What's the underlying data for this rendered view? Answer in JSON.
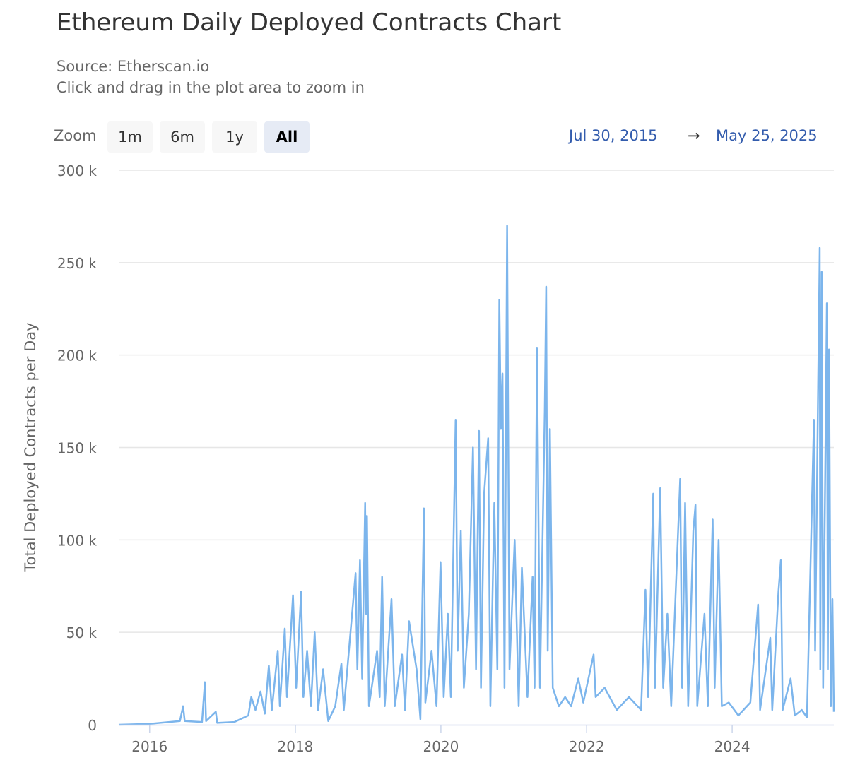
{
  "title": "Ethereum Daily Deployed Contracts Chart",
  "source": "Source: Etherscan.io",
  "hint": "Click and drag in the plot area to zoom in",
  "zoom": {
    "label": "Zoom",
    "buttons": [
      "1m",
      "6m",
      "1y",
      "All"
    ],
    "active": "All"
  },
  "range": {
    "from": "Jul 30, 2015",
    "arrow": "→",
    "to": "May 25, 2025"
  },
  "colors": {
    "line": "#7cb5ec",
    "grid": "#e6e6e6",
    "axis": "#ccd6eb",
    "range_text": "#335cad"
  },
  "chart_data": {
    "type": "line",
    "title": "Ethereum Daily Deployed Contracts Chart",
    "ylabel": "Total Deployed Contracts per Day",
    "xlabel": "",
    "xlim": [
      "2015-07-30",
      "2025-05-25"
    ],
    "ylim": [
      0,
      300000
    ],
    "grid": true,
    "x_ticks": [
      "2016",
      "2018",
      "2020",
      "2022",
      "2024"
    ],
    "y_ticks": [
      {
        "v": 0,
        "label": "0"
      },
      {
        "v": 50000,
        "label": "50 k"
      },
      {
        "v": 100000,
        "label": "100 k"
      },
      {
        "v": 150000,
        "label": "150 k"
      },
      {
        "v": 200000,
        "label": "200 k"
      },
      {
        "v": 250000,
        "label": "250 k"
      },
      {
        "v": 300000,
        "label": "300 k"
      }
    ],
    "points": [
      [
        "2015-07-30",
        0
      ],
      [
        "2016-01-01",
        500
      ],
      [
        "2016-06-01",
        2000
      ],
      [
        "2016-06-17",
        10000
      ],
      [
        "2016-06-25",
        2000
      ],
      [
        "2016-09-20",
        1500
      ],
      [
        "2016-10-04",
        23000
      ],
      [
        "2016-10-10",
        2000
      ],
      [
        "2016-11-28",
        7000
      ],
      [
        "2016-12-05",
        1000
      ],
      [
        "2017-03-01",
        1500
      ],
      [
        "2017-05-10",
        5000
      ],
      [
        "2017-05-25",
        15000
      ],
      [
        "2017-06-15",
        8000
      ],
      [
        "2017-07-10",
        18000
      ],
      [
        "2017-08-01",
        6000
      ],
      [
        "2017-08-21",
        32000
      ],
      [
        "2017-09-05",
        8000
      ],
      [
        "2017-10-05",
        40000
      ],
      [
        "2017-10-15",
        10000
      ],
      [
        "2017-11-09",
        52000
      ],
      [
        "2017-11-20",
        15000
      ],
      [
        "2017-12-20",
        70000
      ],
      [
        "2018-01-05",
        20000
      ],
      [
        "2018-01-30",
        72000
      ],
      [
        "2018-02-10",
        15000
      ],
      [
        "2018-03-01",
        40000
      ],
      [
        "2018-03-20",
        10000
      ],
      [
        "2018-04-08",
        50000
      ],
      [
        "2018-04-25",
        8000
      ],
      [
        "2018-05-20",
        30000
      ],
      [
        "2018-06-15",
        2000
      ],
      [
        "2018-07-20",
        10000
      ],
      [
        "2018-08-20",
        33000
      ],
      [
        "2018-09-01",
        8000
      ],
      [
        "2018-10-30",
        82000
      ],
      [
        "2018-11-08",
        30000
      ],
      [
        "2018-11-21",
        89000
      ],
      [
        "2018-12-02",
        25000
      ],
      [
        "2018-12-17",
        120000
      ],
      [
        "2018-12-22",
        60000
      ],
      [
        "2018-12-26",
        113000
      ],
      [
        "2019-01-05",
        10000
      ],
      [
        "2019-02-15",
        40000
      ],
      [
        "2019-02-28",
        15000
      ],
      [
        "2019-03-12",
        80000
      ],
      [
        "2019-03-25",
        10000
      ],
      [
        "2019-04-28",
        68000
      ],
      [
        "2019-05-15",
        10000
      ],
      [
        "2019-06-20",
        38000
      ],
      [
        "2019-07-05",
        8000
      ],
      [
        "2019-07-25",
        56000
      ],
      [
        "2019-09-01",
        30000
      ],
      [
        "2019-09-20",
        3000
      ],
      [
        "2019-10-08",
        117000
      ],
      [
        "2019-10-15",
        12000
      ],
      [
        "2019-11-15",
        40000
      ],
      [
        "2019-12-10",
        10000
      ],
      [
        "2019-12-30",
        88000
      ],
      [
        "2020-01-15",
        15000
      ],
      [
        "2020-02-05",
        60000
      ],
      [
        "2020-02-20",
        15000
      ],
      [
        "2020-03-15",
        165000
      ],
      [
        "2020-03-25",
        40000
      ],
      [
        "2020-04-10",
        105000
      ],
      [
        "2020-04-25",
        20000
      ],
      [
        "2020-05-20",
        60000
      ],
      [
        "2020-06-10",
        150000
      ],
      [
        "2020-06-25",
        30000
      ],
      [
        "2020-07-10",
        159000
      ],
      [
        "2020-07-20",
        20000
      ],
      [
        "2020-08-05",
        125000
      ],
      [
        "2020-08-25",
        155000
      ],
      [
        "2020-09-05",
        10000
      ],
      [
        "2020-09-25",
        120000
      ],
      [
        "2020-10-10",
        30000
      ],
      [
        "2020-10-20",
        230000
      ],
      [
        "2020-10-28",
        160000
      ],
      [
        "2020-11-05",
        190000
      ],
      [
        "2020-11-15",
        20000
      ],
      [
        "2020-11-28",
        270000
      ],
      [
        "2020-12-10",
        30000
      ],
      [
        "2021-01-05",
        100000
      ],
      [
        "2021-01-25",
        10000
      ],
      [
        "2021-02-10",
        85000
      ],
      [
        "2021-03-10",
        15000
      ],
      [
        "2021-04-05",
        80000
      ],
      [
        "2021-04-15",
        20000
      ],
      [
        "2021-04-27",
        204000
      ],
      [
        "2021-05-12",
        20000
      ],
      [
        "2021-06-05",
        170000
      ],
      [
        "2021-06-12",
        237000
      ],
      [
        "2021-06-20",
        40000
      ],
      [
        "2021-07-01",
        160000
      ],
      [
        "2021-07-15",
        20000
      ],
      [
        "2021-08-15",
        10000
      ],
      [
        "2021-09-15",
        15000
      ],
      [
        "2021-10-15",
        10000
      ],
      [
        "2021-11-20",
        25000
      ],
      [
        "2021-12-15",
        12000
      ],
      [
        "2022-02-05",
        38000
      ],
      [
        "2022-02-15",
        15000
      ],
      [
        "2022-04-01",
        20000
      ],
      [
        "2022-06-01",
        8000
      ],
      [
        "2022-08-01",
        15000
      ],
      [
        "2022-10-01",
        8000
      ],
      [
        "2022-10-23",
        73000
      ],
      [
        "2022-11-05",
        15000
      ],
      [
        "2022-12-01",
        125000
      ],
      [
        "2022-12-10",
        20000
      ],
      [
        "2023-01-05",
        128000
      ],
      [
        "2023-01-20",
        20000
      ],
      [
        "2023-02-10",
        60000
      ],
      [
        "2023-03-01",
        10000
      ],
      [
        "2023-04-15",
        133000
      ],
      [
        "2023-04-25",
        20000
      ],
      [
        "2023-05-10",
        120000
      ],
      [
        "2023-05-25",
        10000
      ],
      [
        "2023-06-20",
        105000
      ],
      [
        "2023-07-01",
        119000
      ],
      [
        "2023-07-10",
        10000
      ],
      [
        "2023-08-15",
        60000
      ],
      [
        "2023-09-01",
        10000
      ],
      [
        "2023-09-25",
        111000
      ],
      [
        "2023-10-05",
        20000
      ],
      [
        "2023-10-25",
        100000
      ],
      [
        "2023-11-10",
        10000
      ],
      [
        "2023-12-15",
        12000
      ],
      [
        "2024-02-01",
        5000
      ],
      [
        "2024-04-01",
        12000
      ],
      [
        "2024-05-10",
        65000
      ],
      [
        "2024-05-20",
        8000
      ],
      [
        "2024-07-10",
        47000
      ],
      [
        "2024-07-20",
        8000
      ],
      [
        "2024-08-20",
        72000
      ],
      [
        "2024-09-01",
        89000
      ],
      [
        "2024-09-10",
        8000
      ],
      [
        "2024-10-20",
        25000
      ],
      [
        "2024-11-10",
        5000
      ],
      [
        "2024-12-15",
        8000
      ],
      [
        "2025-01-10",
        4000
      ],
      [
        "2025-02-14",
        165000
      ],
      [
        "2025-02-20",
        40000
      ],
      [
        "2025-03-15",
        258000
      ],
      [
        "2025-03-18",
        30000
      ],
      [
        "2025-03-25",
        245000
      ],
      [
        "2025-04-01",
        20000
      ],
      [
        "2025-04-20",
        228000
      ],
      [
        "2025-04-25",
        30000
      ],
      [
        "2025-05-01",
        203000
      ],
      [
        "2025-05-10",
        10000
      ],
      [
        "2025-05-18",
        68000
      ],
      [
        "2025-05-25",
        7000
      ]
    ]
  }
}
